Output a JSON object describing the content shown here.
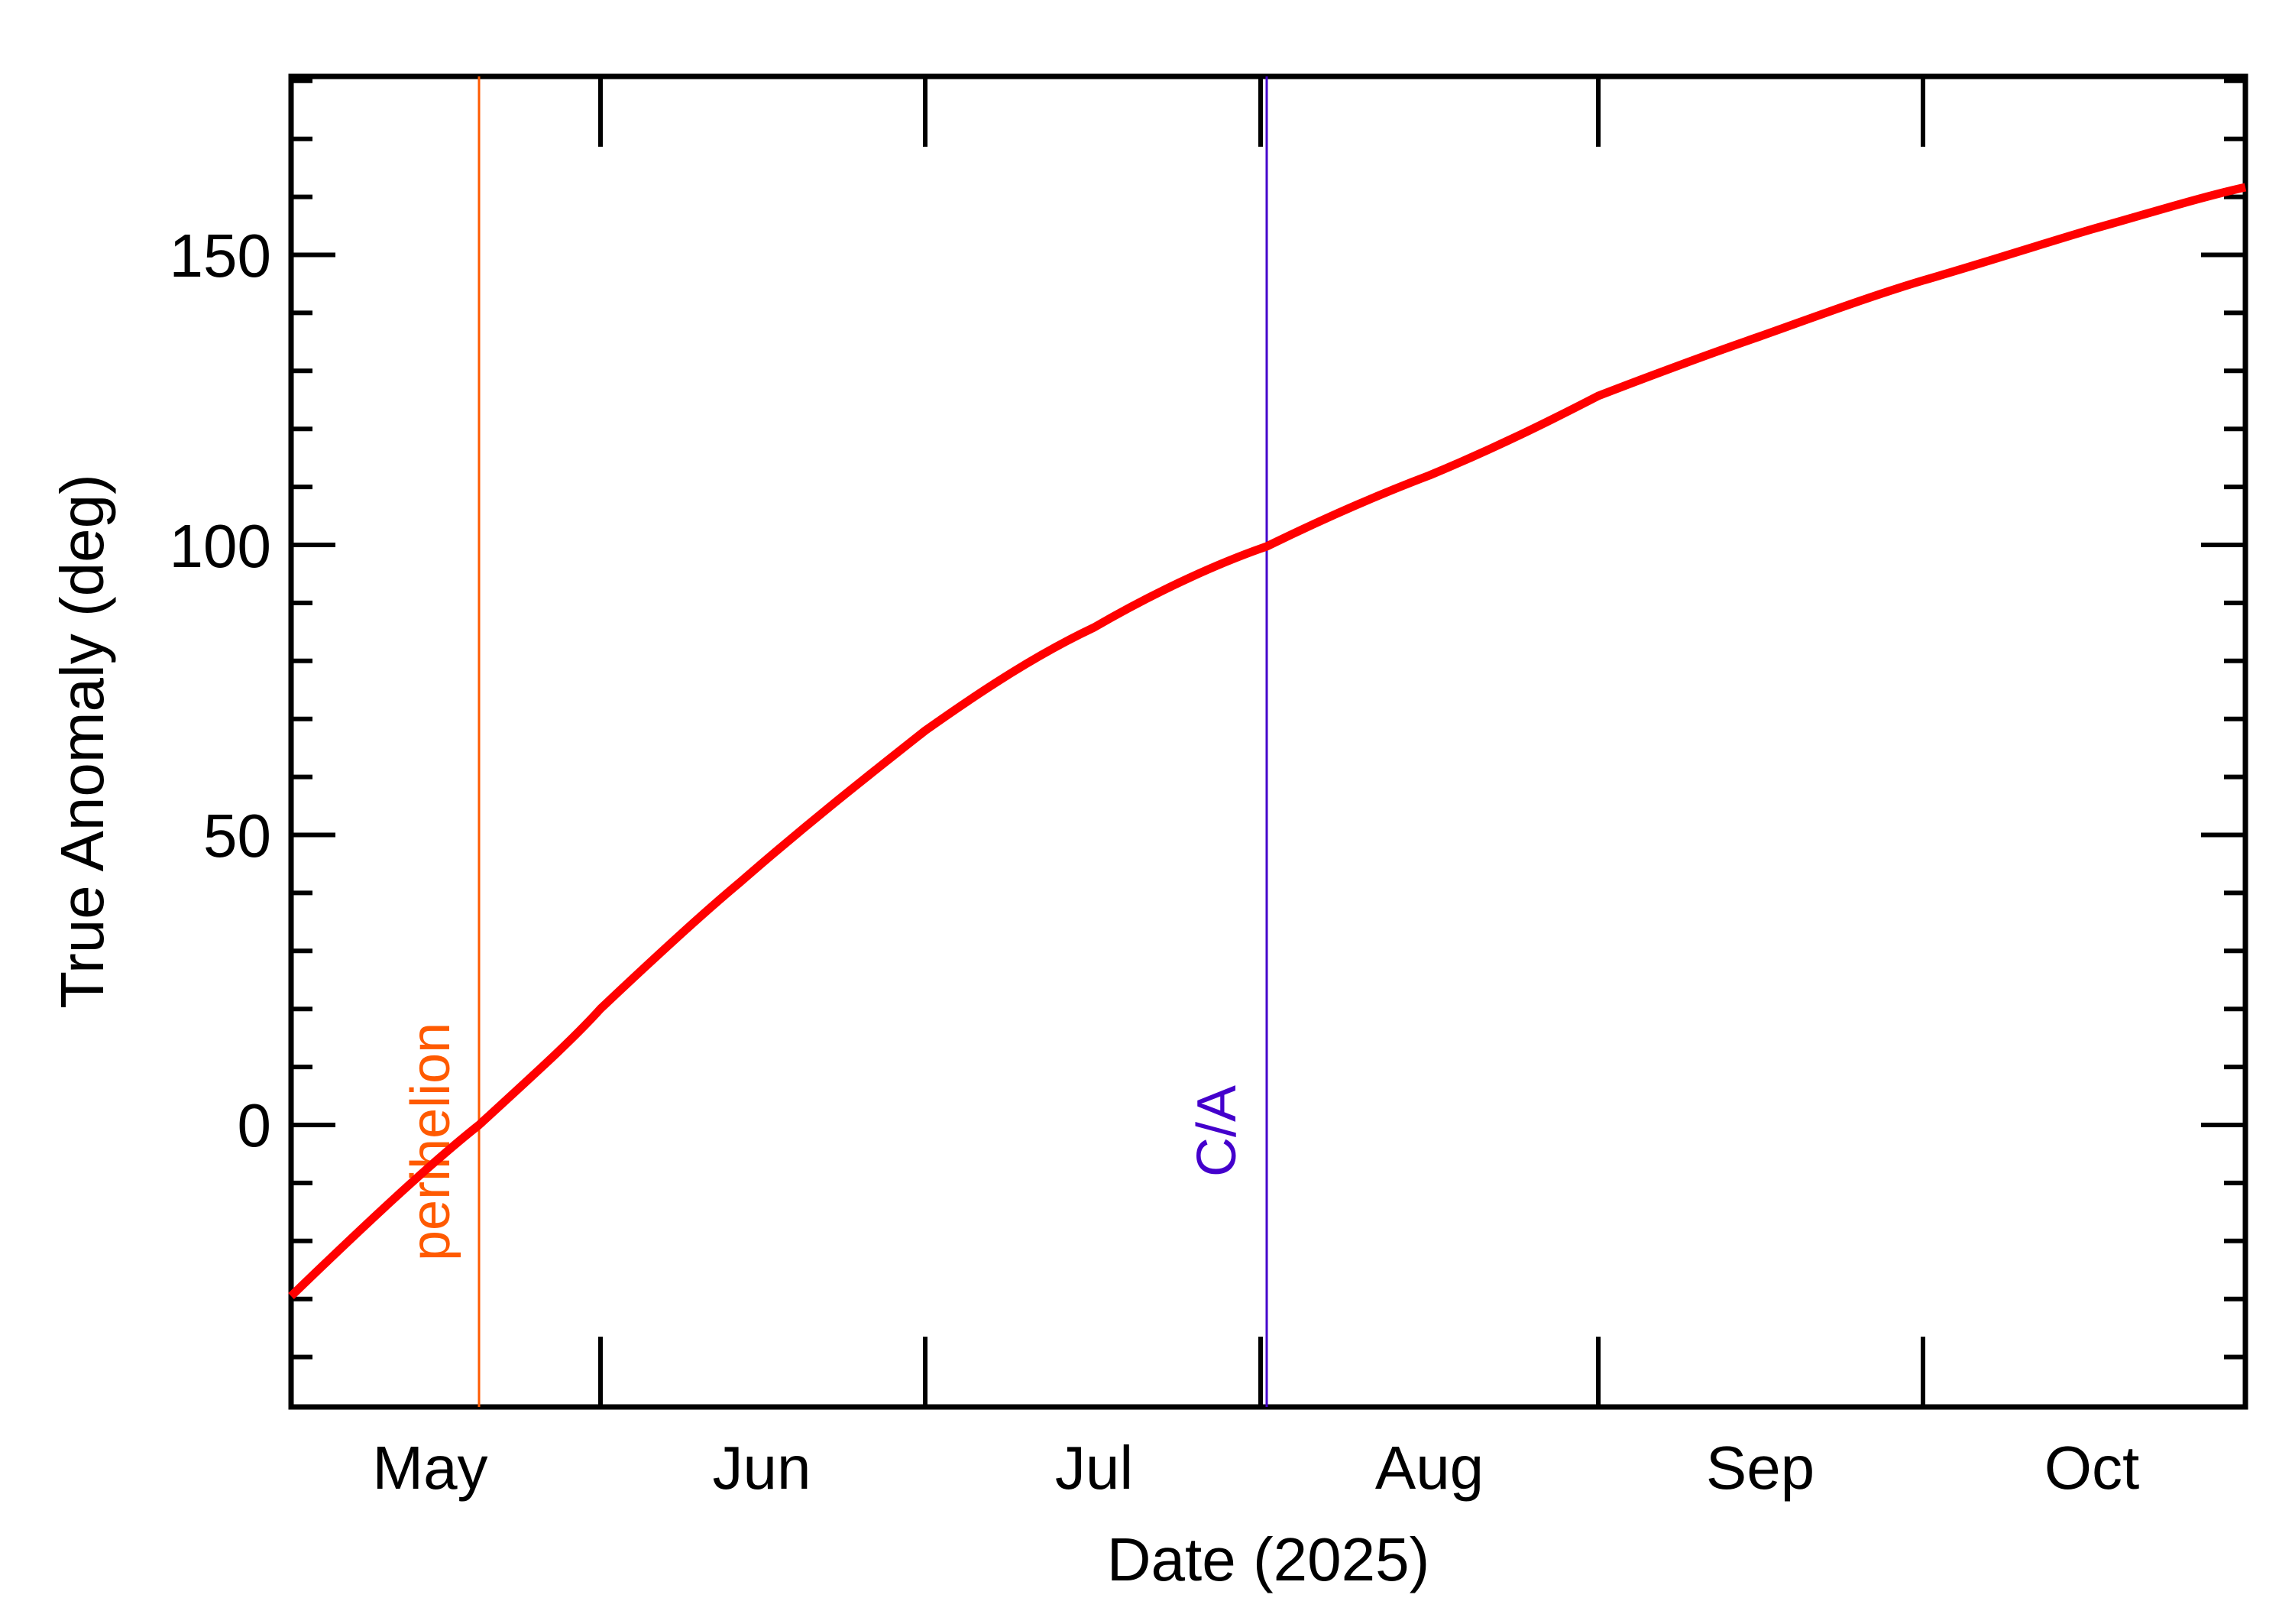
{
  "chart_data": {
    "type": "line",
    "title": "",
    "xlabel": "Date (2025)",
    "ylabel": "True Anomaly (deg)",
    "x_unit": "day of 2025",
    "xlim_dates": [
      "2025-05-03",
      "2025-10-31"
    ],
    "ylim": [
      -48.6,
      180.7
    ],
    "grid": false,
    "legend": null,
    "x_tick_labels": [
      "May",
      "Jun",
      "Jul",
      "Aug",
      "Sep",
      "Oct"
    ],
    "x_major_ticks_dates": [
      "2025-06-01",
      "2025-07-01",
      "2025-08-01",
      "2025-09-01",
      "2025-10-01"
    ],
    "y_ticks": [
      0,
      50,
      100,
      150
    ],
    "y_tick_labels": [
      "0",
      "50",
      "100",
      "150"
    ],
    "y_minor_tick_step": 10,
    "series": [
      {
        "name": "True Anomaly",
        "color": "#ff0000",
        "x_dates": [
          "2025-05-03",
          "2025-05-21",
          "2025-06-01",
          "2025-06-14",
          "2025-07-01",
          "2025-07-16",
          "2025-08-01",
          "2025-08-16",
          "2025-09-01",
          "2025-09-16",
          "2025-10-01",
          "2025-10-16",
          "2025-10-31"
        ],
        "values": [
          -29.5,
          0,
          20,
          42,
          68,
          86,
          100,
          112,
          126,
          136,
          145.5,
          154.5,
          161.6
        ]
      }
    ],
    "annotations": [
      {
        "label": "perihelion",
        "type": "vline",
        "date": "2025-05-21",
        "color": "#ff5a00"
      },
      {
        "label": "C/A",
        "type": "vline",
        "date": "2025-08-01",
        "color": "#4400cc"
      }
    ]
  },
  "axes": {
    "xlabel": "Date (2025)",
    "ylabel": "True Anomaly (deg)",
    "x_ticks": [
      "May",
      "Jun",
      "Jul",
      "Aug",
      "Sep",
      "Oct"
    ],
    "y_ticks": [
      "150",
      "100",
      "50",
      "0"
    ]
  },
  "markers": {
    "perihelion": "perihelion",
    "ca": "C/A"
  },
  "colors": {
    "curve": "#ff0000",
    "perihelion": "#ff5a00",
    "ca": "#4400cc",
    "axis": "#000000"
  }
}
